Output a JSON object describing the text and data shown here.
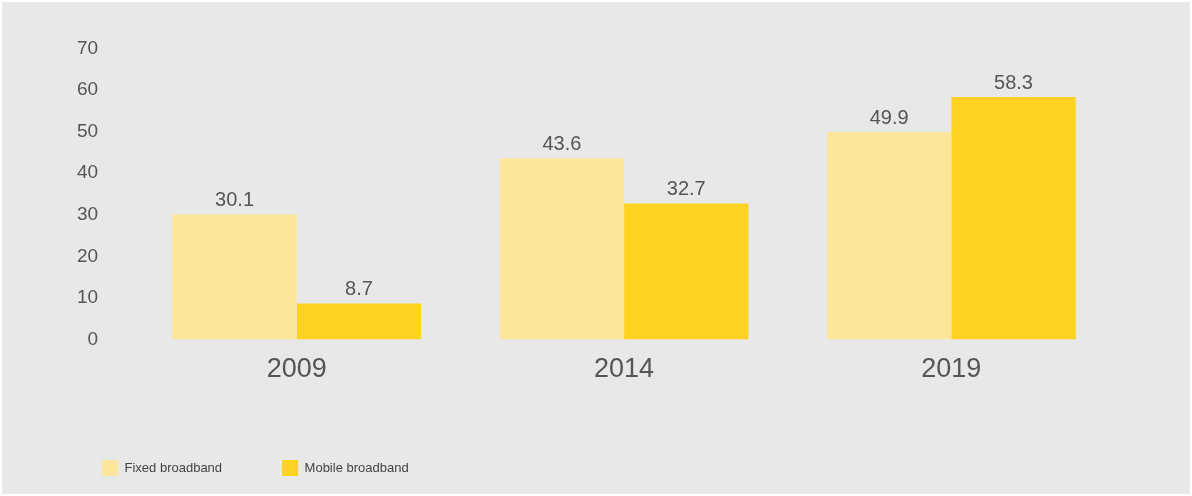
{
  "chart_data": {
    "type": "bar",
    "categories": [
      "2009",
      "2014",
      "2019"
    ],
    "series": [
      {
        "name": "Fixed broadband",
        "color": "#fde59a",
        "values": [
          30.1,
          43.6,
          49.9
        ]
      },
      {
        "name": "Mobile broadband",
        "color": "#fed220",
        "values": [
          8.7,
          32.7,
          58.3
        ]
      }
    ],
    "ylim": [
      0,
      70
    ],
    "yticks": [
      0,
      10,
      20,
      30,
      40,
      50,
      60,
      70
    ],
    "grid": false,
    "data_labels": true,
    "legend": "bottom left"
  }
}
